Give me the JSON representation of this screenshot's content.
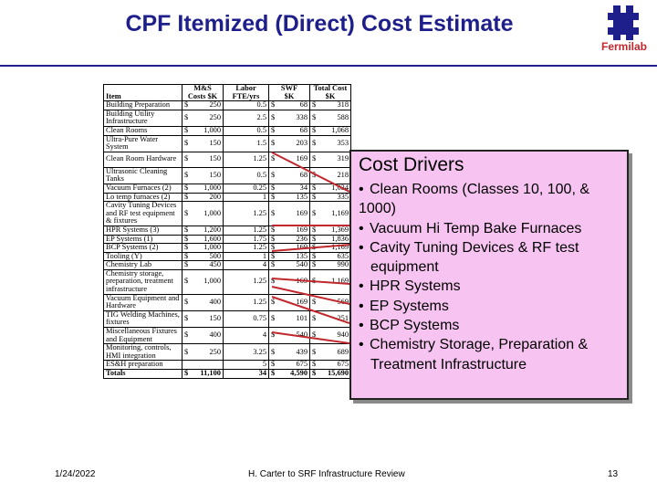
{
  "slide": {
    "title": "CPF Itemized (Direct) Cost Estimate",
    "logo_text": "Fermilab",
    "accent_color": "#1f1f8c",
    "logo_color": "#c0282d"
  },
  "table": {
    "headers": {
      "item": "Item",
      "ms": "M&S Costs $K",
      "labor": "Labor",
      "labor_sub": "FTE/yrs",
      "swf": "SWF",
      "swf_sub": "$K",
      "total": "Total Cost",
      "total_sub": "$K"
    },
    "rows": [
      {
        "item": "Building Preparation",
        "ms": "250",
        "labor": "0.5",
        "swf": "68",
        "total": "318"
      },
      {
        "item": "Building Utility Infrastructure",
        "ms": "250",
        "labor": "2.5",
        "swf": "338",
        "total": "588"
      },
      {
        "item": "Clean Rooms",
        "ms": "1,000",
        "labor": "0.5",
        "swf": "68",
        "total": "1,068"
      },
      {
        "item": "Ultra-Pure Water System",
        "ms": "150",
        "labor": "1.5",
        "swf": "203",
        "total": "353"
      },
      {
        "item": "Clean Room Hardware",
        "ms": "150",
        "labor": "1.25",
        "swf": "169",
        "total": "319"
      },
      {
        "item": "Ultrasonic Cleaning Tanks",
        "ms": "150",
        "labor": "0.5",
        "swf": "68",
        "total": "218"
      },
      {
        "item": "Vacuum Furnaces (2)",
        "ms": "1,000",
        "labor": "0.25",
        "swf": "34",
        "total": "1,034"
      },
      {
        "item": "Lo temp furnaces (2)",
        "ms": "200",
        "labor": "1",
        "swf": "135",
        "total": "335"
      },
      {
        "item": "Cavity Tuning Devices and RF test equipment & fixtures",
        "ms": "1,000",
        "labor": "1.25",
        "swf": "169",
        "total": "1,169"
      },
      {
        "item": "HPR Systems (3)",
        "ms": "1,200",
        "labor": "1.25",
        "swf": "169",
        "total": "1,369"
      },
      {
        "item": "EP Systems (1)",
        "ms": "1,600",
        "labor": "1.75",
        "swf": "236",
        "total": "1,836"
      },
      {
        "item": "BCP Systems (2)",
        "ms": "1,000",
        "labor": "1.25",
        "swf": "169",
        "total": "1,169"
      },
      {
        "item": "Tooling (Y)",
        "ms": "500",
        "labor": "1",
        "swf": "135",
        "total": "635"
      },
      {
        "item": "Chemistry Lab",
        "ms": "450",
        "labor": "4",
        "swf": "540",
        "total": "990"
      },
      {
        "item": "Chemistry storage, preparation, treatment infrastructure",
        "ms": "1,000",
        "labor": "1.25",
        "swf": "169",
        "total": "1,169"
      },
      {
        "item": "Vacuum Equipment and Hardware",
        "ms": "400",
        "labor": "1.25",
        "swf": "169",
        "total": "569"
      },
      {
        "item": "TIG Welding Machines, fixtures",
        "ms": "150",
        "labor": "0.75",
        "swf": "101",
        "total": "251"
      },
      {
        "item": "Miscellaneous Fixtures and Equipment",
        "ms": "400",
        "labor": "4",
        "swf": "540",
        "total": "940"
      },
      {
        "item": "Monitoring, controls, HMI integration",
        "ms": "250",
        "labor": "3.25",
        "swf": "439",
        "total": "689"
      },
      {
        "item": "ES&H preparation",
        "ms": "",
        "labor": "5",
        "swf": "675",
        "total": "675"
      }
    ],
    "totals": {
      "item": "Totals",
      "ms": "11,100",
      "labor": "34",
      "swf": "4,590",
      "total": "15,690"
    },
    "currency_symbol": "$"
  },
  "drivers": {
    "title": "Cost Drivers",
    "items": [
      {
        "text": "Clean Rooms (Classes 10, 100, &",
        "cont": "1000)",
        "indent": false
      },
      {
        "text": "Vacuum Hi Temp Bake Furnaces"
      },
      {
        "text": "Cavity Tuning Devices & RF test",
        "cont": "equipment",
        "indent": true
      },
      {
        "text": "HPR Systems"
      },
      {
        "text": "EP Systems"
      },
      {
        "text": "BCP Systems"
      },
      {
        "text": "Chemistry Storage, Preparation &",
        "cont": "Treatment Infrastructure",
        "indent": true
      }
    ],
    "bullet": "•"
  },
  "footer": {
    "date": "1/24/2022",
    "center": "H. Carter to SRF Infrastructure Review",
    "page": "13"
  }
}
